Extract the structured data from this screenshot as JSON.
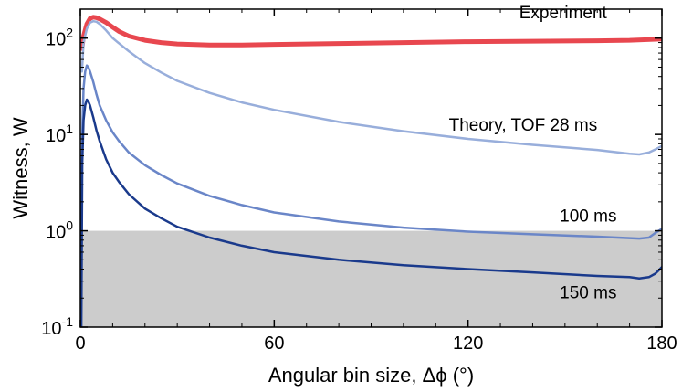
{
  "chart_data": {
    "type": "line",
    "xlabel": "Angular bin size, Δϕ (°)",
    "ylabel": "Witness, W",
    "xlim": [
      0,
      180
    ],
    "ylim": [
      0.1,
      200
    ],
    "yscale": "log",
    "grid": false,
    "x_ticks": [
      "0",
      "60",
      "120",
      "180"
    ],
    "y_ticks": [
      {
        "base": "10",
        "exp": "-1",
        "value": 0.1
      },
      {
        "base": "10",
        "exp": "0",
        "value": 1
      },
      {
        "base": "10",
        "exp": "1",
        "value": 10
      },
      {
        "base": "10",
        "exp": "2",
        "value": 100
      }
    ],
    "shaded_region": {
      "y_from": 0.1,
      "y_to": 1,
      "color": "#cccccc"
    },
    "series": [
      {
        "name": "Experiment",
        "color": "#e8474f",
        "x": [
          0.5,
          1,
          2,
          3,
          4,
          5,
          6,
          8,
          10,
          12,
          15,
          20,
          25,
          30,
          40,
          50,
          60,
          80,
          100,
          120,
          140,
          160,
          170,
          180
        ],
        "y": [
          78,
          105,
          140,
          160,
          165,
          163,
          158,
          145,
          130,
          117,
          105,
          95,
          90,
          87,
          85,
          85,
          86,
          88,
          90,
          92,
          93,
          94,
          95,
          98
        ]
      },
      {
        "name": "Theory, TOF 28 ms",
        "color": "#98aedb",
        "x": [
          0.5,
          1,
          2,
          3,
          4,
          5,
          6,
          8,
          10,
          12,
          15,
          20,
          25,
          30,
          40,
          50,
          60,
          80,
          100,
          120,
          140,
          160,
          170,
          173,
          176,
          178,
          180
        ],
        "y": [
          45,
          90,
          125,
          145,
          150,
          148,
          140,
          120,
          100,
          88,
          73,
          55,
          44,
          36,
          27,
          21.5,
          18,
          13.5,
          10.8,
          9,
          7.8,
          6.9,
          6.3,
          6.2,
          6.5,
          7.0,
          7.6
        ]
      },
      {
        "name": "100 ms",
        "color": "#6a86c8",
        "x": [
          0.3,
          0.6,
          1,
          1.5,
          2,
          2.5,
          3,
          4,
          5,
          6,
          8,
          10,
          12,
          15,
          20,
          25,
          30,
          40,
          50,
          60,
          80,
          100,
          120,
          140,
          160,
          170,
          173,
          176,
          178,
          180
        ],
        "y": [
          1.2,
          10,
          30,
          45,
          52,
          50,
          45,
          35,
          26,
          20,
          14,
          10.5,
          8.5,
          6.5,
          4.8,
          3.8,
          3.1,
          2.3,
          1.85,
          1.55,
          1.25,
          1.08,
          0.98,
          0.92,
          0.87,
          0.84,
          0.83,
          0.85,
          0.95,
          1.05
        ]
      },
      {
        "name": "150 ms",
        "color": "#1a3a8c",
        "x": [
          0.3,
          0.6,
          1,
          1.5,
          2,
          2.5,
          3,
          4,
          5,
          6,
          8,
          10,
          12,
          15,
          20,
          25,
          30,
          40,
          50,
          60,
          80,
          100,
          120,
          140,
          160,
          170,
          173,
          176,
          178,
          180
        ],
        "y": [
          0.1,
          5,
          14,
          20,
          23,
          22,
          20,
          15,
          11,
          8.5,
          5.5,
          4,
          3.2,
          2.4,
          1.7,
          1.35,
          1.1,
          0.85,
          0.7,
          0.6,
          0.5,
          0.44,
          0.4,
          0.37,
          0.34,
          0.33,
          0.32,
          0.33,
          0.36,
          0.42
        ]
      }
    ],
    "annotations": [
      {
        "text": "Experiment",
        "x": 163,
        "y": 160
      },
      {
        "text": "Theory, TOF 28 ms",
        "x": 160,
        "y": 11
      },
      {
        "text": "100 ms",
        "x": 166,
        "y": 1.25
      },
      {
        "text": "150 ms",
        "x": 166,
        "y": 0.2
      }
    ]
  }
}
